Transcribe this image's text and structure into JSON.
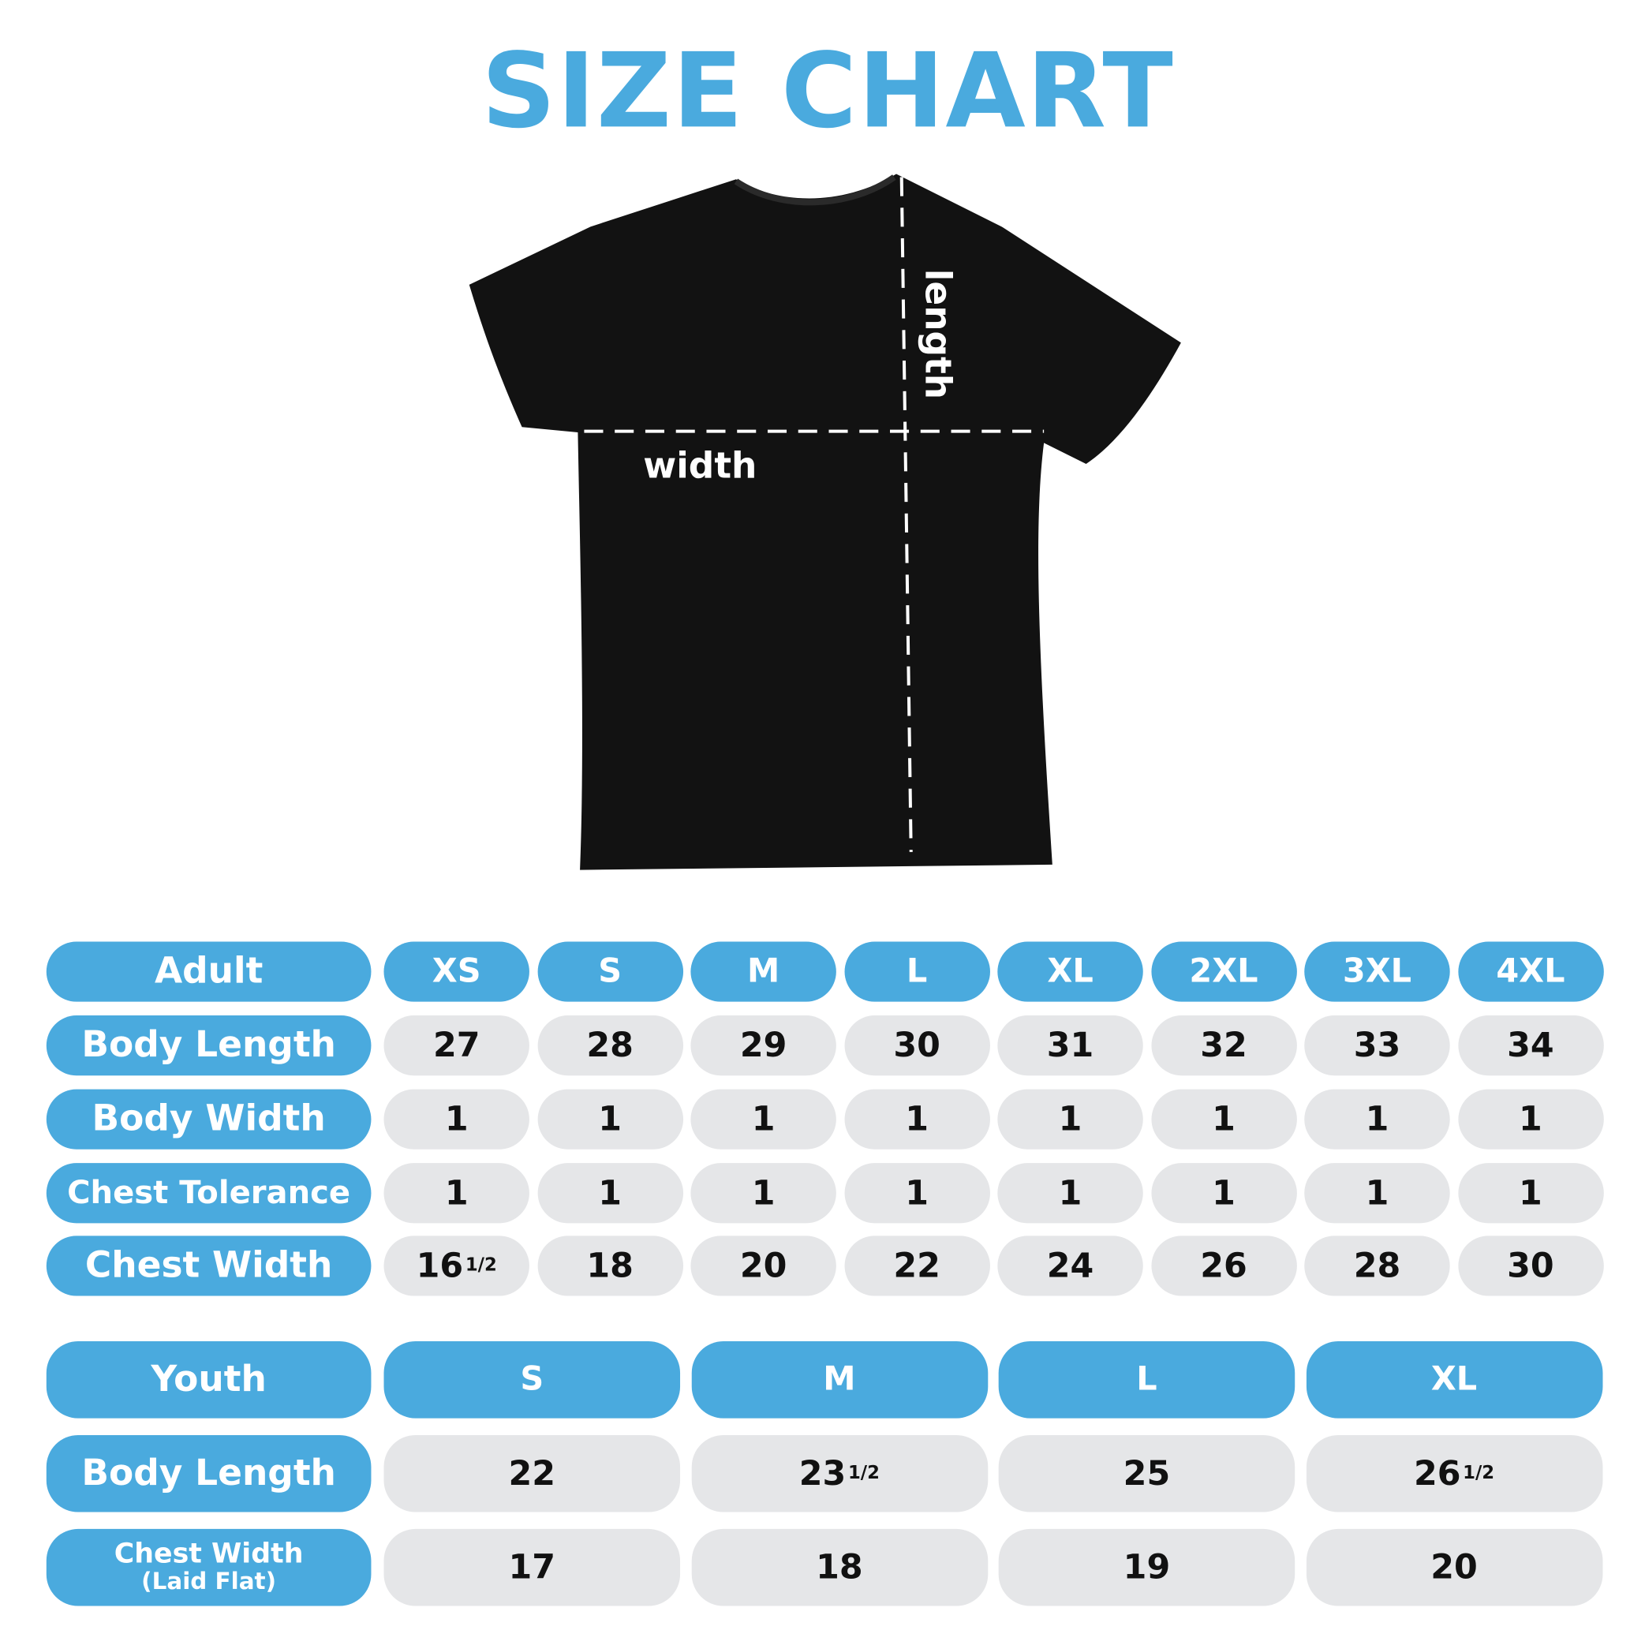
{
  "title": "SIZE CHART",
  "diagram": {
    "length_label": "length",
    "width_label": "width"
  },
  "colors": {
    "accent": "#4aaade",
    "cell": "#e5e6e8",
    "shirt": "#121212"
  },
  "adult": {
    "header": "Adult",
    "sizes": [
      "XS",
      "S",
      "M",
      "L",
      "XL",
      "2XL",
      "3XL",
      "4XL"
    ],
    "rows": [
      {
        "label": "Body Length",
        "values": [
          [
            "27",
            ""
          ],
          [
            "28",
            ""
          ],
          [
            "29",
            ""
          ],
          [
            "30",
            ""
          ],
          [
            "31",
            ""
          ],
          [
            "32",
            ""
          ],
          [
            "33",
            ""
          ],
          [
            "34",
            ""
          ]
        ]
      },
      {
        "label": "Body Width",
        "values": [
          [
            "1",
            ""
          ],
          [
            "1",
            ""
          ],
          [
            "1",
            ""
          ],
          [
            "1",
            ""
          ],
          [
            "1",
            ""
          ],
          [
            "1",
            ""
          ],
          [
            "1",
            ""
          ],
          [
            "1",
            ""
          ]
        ]
      },
      {
        "label": "Chest Tolerance",
        "values": [
          [
            "1",
            ""
          ],
          [
            "1",
            ""
          ],
          [
            "1",
            ""
          ],
          [
            "1",
            ""
          ],
          [
            "1",
            ""
          ],
          [
            "1",
            ""
          ],
          [
            "1",
            ""
          ],
          [
            "1",
            ""
          ]
        ]
      },
      {
        "label": "Chest Width",
        "values": [
          [
            "16",
            "1/2"
          ],
          [
            "18",
            ""
          ],
          [
            "20",
            ""
          ],
          [
            "22",
            ""
          ],
          [
            "24",
            ""
          ],
          [
            "26",
            ""
          ],
          [
            "28",
            ""
          ],
          [
            "30",
            ""
          ]
        ]
      }
    ]
  },
  "youth": {
    "header": "Youth",
    "sizes": [
      "S",
      "M",
      "L",
      "XL"
    ],
    "rows": [
      {
        "label": "Body Length",
        "values": [
          [
            "22",
            ""
          ],
          [
            "23",
            "1/2"
          ],
          [
            "25",
            ""
          ],
          [
            "26",
            "1/2"
          ]
        ]
      },
      {
        "label": "Chest Width",
        "sublabel": "(Laid Flat)",
        "values": [
          [
            "17",
            ""
          ],
          [
            "18",
            ""
          ],
          [
            "19",
            ""
          ],
          [
            "20",
            ""
          ]
        ]
      }
    ]
  }
}
